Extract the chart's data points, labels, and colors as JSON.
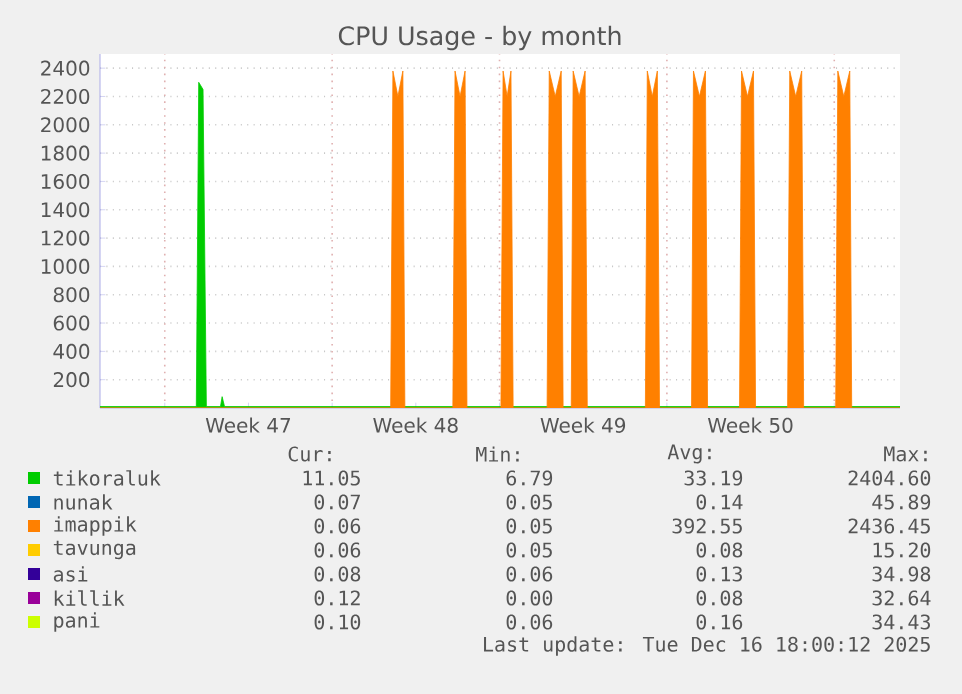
{
  "chart_data": {
    "type": "area",
    "title": "CPU Usage - by month",
    "xlim": [
      "2025-11-14T07:00",
      "2025-12-17T18:00"
    ],
    "ylim": [
      0,
      2500
    ],
    "xticks": [
      {
        "value": "2025-11-17T00:00",
        "label": null
      },
      {
        "value": "2025-11-20T12:00",
        "label": "Week 47"
      },
      {
        "value": "2025-11-24T00:00",
        "label": null
      },
      {
        "value": "2025-11-27T12:00",
        "label": "Week 48"
      },
      {
        "value": "2025-12-01T00:00",
        "label": null
      },
      {
        "value": "2025-12-04T12:00",
        "label": "Week 49"
      },
      {
        "value": "2025-12-08T00:00",
        "label": null
      },
      {
        "value": "2025-12-11T12:00",
        "label": "Week 50"
      },
      {
        "value": "2025-12-15T00:00",
        "label": null
      }
    ],
    "yticks": [
      200,
      400,
      600,
      800,
      1000,
      1200,
      1400,
      1600,
      1800,
      2000,
      2200,
      2400
    ],
    "grid": true,
    "legend": "bottom",
    "series": [
      {
        "name": "tikoraluk",
        "color": "#00cc00",
        "x": [
          "2025-11-14T07:00",
          "2025-11-18T07:40",
          "2025-11-18T10:05",
          "2025-11-18T14:25",
          "2025-11-18T17:45",
          "2025-11-19T07:55",
          "2025-11-19T09:35",
          "2025-11-19T12:00",
          "2025-12-17T18:00"
        ],
        "values": [
          10,
          10,
          2300,
          2250,
          10,
          10,
          80,
          10,
          10
        ]
      },
      {
        "name": "nunak",
        "color": "#0066b3"
      },
      {
        "name": "imappik",
        "color": "#ff8000",
        "x": [
          "2025-11-14T07:00",
          "2025-11-26T10:45",
          "2025-11-26T13:00",
          "2025-11-26T18:00",
          "2025-11-26T23:00",
          "2025-11-27T01:00",
          "2025-11-29T01:10",
          "2025-11-29T03:20",
          "2025-11-29T08:25",
          "2025-11-29T13:25",
          "2025-11-29T15:20",
          "2025-12-01T01:25",
          "2025-12-01T03:35",
          "2025-12-01T07:40",
          "2025-12-01T11:30",
          "2025-12-01T13:40",
          "2025-12-02T23:45",
          "2025-12-03T01:55",
          "2025-12-03T07:55",
          "2025-12-03T13:55",
          "2025-12-03T15:50",
          "2025-12-04T00:00",
          "2025-12-04T01:55",
          "2025-12-04T07:55",
          "2025-12-04T13:55",
          "2025-12-04T16:05",
          "2025-12-07T02:25",
          "2025-12-07T04:20",
          "2025-12-07T09:20",
          "2025-12-07T14:25",
          "2025-12-07T16:35",
          "2025-12-09T00:45",
          "2025-12-09T02:40",
          "2025-12-09T08:40",
          "2025-12-09T14:40",
          "2025-12-09T16:50",
          "2025-12-11T00:55",
          "2025-12-11T02:55",
          "2025-12-11T08:55",
          "2025-12-11T14:55",
          "2025-12-11T17:00",
          "2025-12-13T01:10",
          "2025-12-13T03:20",
          "2025-12-13T09:20",
          "2025-12-13T15:20",
          "2025-12-13T17:15",
          "2025-12-15T01:25",
          "2025-12-15T03:35",
          "2025-12-15T09:35",
          "2025-12-15T15:35",
          "2025-12-15T17:30",
          "2025-12-17T18:00"
        ],
        "values": [
          0,
          0,
          2380,
          2200,
          2380,
          0,
          0,
          2380,
          2200,
          2380,
          0,
          0,
          2380,
          2200,
          2380,
          0,
          0,
          2380,
          2200,
          2380,
          0,
          0,
          2380,
          2200,
          2380,
          0,
          0,
          2380,
          2200,
          2380,
          0,
          0,
          2380,
          2200,
          2380,
          0,
          0,
          2380,
          2200,
          2380,
          0,
          0,
          2380,
          2200,
          2380,
          0,
          0,
          2380,
          2200,
          2380,
          0,
          0
        ]
      },
      {
        "name": "tavunga",
        "color": "#ffcc00"
      },
      {
        "name": "asi",
        "color": "#330099"
      },
      {
        "name": "killik",
        "color": "#990099"
      },
      {
        "name": "pani",
        "color": "#ccff00"
      }
    ],
    "annotations": [
      "Cur:",
      "Min:",
      "Avg:",
      "Max:",
      "11.05",
      "6.79",
      "33.19",
      "2404.60",
      "0.07",
      "0.05",
      "0.14",
      "45.89",
      "0.06",
      "0.05",
      "392.55",
      "2436.45",
      "0.06",
      "0.05",
      "0.08",
      "15.20",
      "0.08",
      "0.06",
      "0.13",
      "34.98",
      "0.12",
      "0.00",
      "0.08",
      "32.64",
      "0.10",
      "0.06",
      "0.16",
      "34.43",
      "Last update: Tue Dec 16 18:00:12 2025"
    ]
  }
}
